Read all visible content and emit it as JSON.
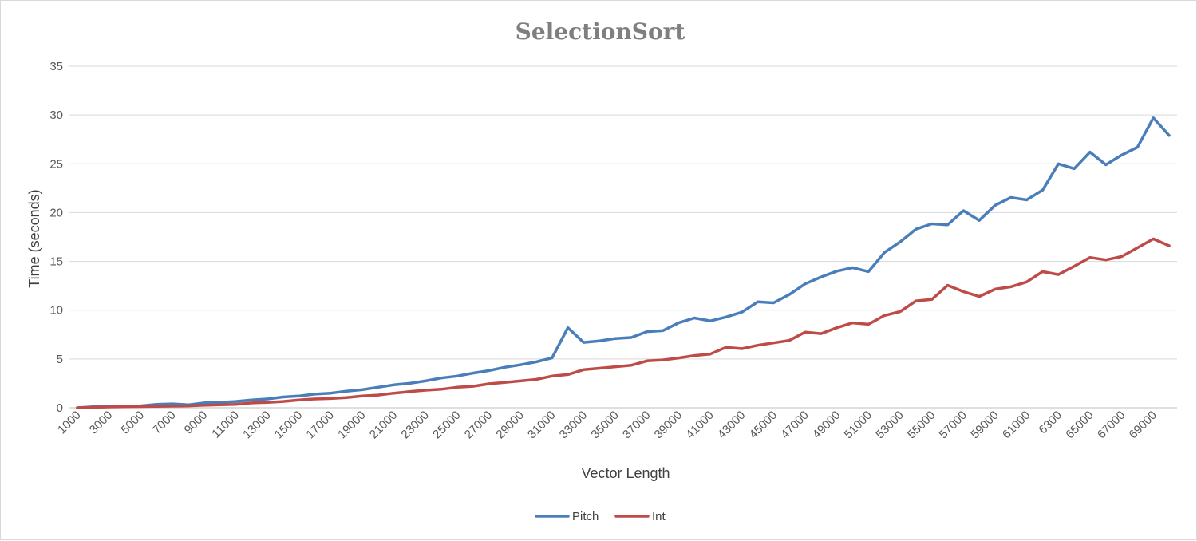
{
  "chart_data": {
    "type": "line",
    "title": "SelectionSort",
    "xlabel": "Vector Length",
    "ylabel": "Time (seconds)",
    "ylim": [
      0,
      35
    ],
    "yticks": [
      0,
      5,
      10,
      15,
      20,
      25,
      30,
      35
    ],
    "grid": true,
    "legend_position": "bottom-center",
    "categories": [
      "1000",
      "2000",
      "3000",
      "4000",
      "5000",
      "6000",
      "7000",
      "8000",
      "9000",
      "10000",
      "11000",
      "12000",
      "13000",
      "14000",
      "15000",
      "16000",
      "17000",
      "18000",
      "19000",
      "20000",
      "21000",
      "22000",
      "23000",
      "24000",
      "25000",
      "26000",
      "27000",
      "28000",
      "29000",
      "30000",
      "31000",
      "32000",
      "33000",
      "34000",
      "35000",
      "36000",
      "37000",
      "38000",
      "39000",
      "40000",
      "41000",
      "42000",
      "43000",
      "44000",
      "45000",
      "46000",
      "47000",
      "48000",
      "49000",
      "50000",
      "51000",
      "52000",
      "53000",
      "54000",
      "55000",
      "56000",
      "57000",
      "58000",
      "59000",
      "60000",
      "61000",
      "62000",
      "6300",
      "64000",
      "65000",
      "66000",
      "67000",
      "68000",
      "69000",
      "70000"
    ],
    "visible_tick_labels": [
      "1000",
      "3000",
      "5000",
      "7000",
      "9000",
      "11000",
      "13000",
      "15000",
      "17000",
      "19000",
      "21000",
      "23000",
      "25000",
      "27000",
      "29000",
      "31000",
      "33000",
      "35000",
      "37000",
      "39000",
      "41000",
      "43000",
      "45000",
      "47000",
      "49000",
      "51000",
      "53000",
      "55000",
      "57000",
      "59000",
      "61000",
      "6300",
      "65000",
      "67000",
      "69000"
    ],
    "series": [
      {
        "name": "Pitch",
        "color": "#4a7ebb",
        "values": [
          0.0,
          0.1,
          0.1,
          0.15,
          0.2,
          0.35,
          0.4,
          0.3,
          0.5,
          0.55,
          0.65,
          0.8,
          0.9,
          1.1,
          1.2,
          1.4,
          1.5,
          1.7,
          1.85,
          2.1,
          2.35,
          2.5,
          2.75,
          3.05,
          3.25,
          3.55,
          3.8,
          4.15,
          4.4,
          4.7,
          5.1,
          8.2,
          6.7,
          6.85,
          7.1,
          7.2,
          7.8,
          7.9,
          8.7,
          9.2,
          8.9,
          9.3,
          9.8,
          10.85,
          10.75,
          11.6,
          12.7,
          13.4,
          14.0,
          14.35,
          13.95,
          15.9,
          17.0,
          18.3,
          18.85,
          18.75,
          20.2,
          19.2,
          20.75,
          21.55,
          21.3,
          22.3,
          25.0,
          24.5,
          26.2,
          24.9,
          25.9,
          26.7,
          29.7,
          27.9
        ]
      },
      {
        "name": "Int",
        "color": "#be4b48",
        "values": [
          0.0,
          0.05,
          0.08,
          0.1,
          0.12,
          0.15,
          0.17,
          0.2,
          0.25,
          0.3,
          0.35,
          0.5,
          0.55,
          0.65,
          0.8,
          0.9,
          0.95,
          1.05,
          1.2,
          1.3,
          1.5,
          1.65,
          1.8,
          1.9,
          2.1,
          2.2,
          2.45,
          2.6,
          2.75,
          2.9,
          3.25,
          3.4,
          3.9,
          4.05,
          4.2,
          4.35,
          4.8,
          4.9,
          5.1,
          5.35,
          5.5,
          6.2,
          6.05,
          6.4,
          6.65,
          6.9,
          7.75,
          7.6,
          8.2,
          8.7,
          8.55,
          9.45,
          9.85,
          10.95,
          11.1,
          12.55,
          11.9,
          11.4,
          12.15,
          12.4,
          12.9,
          13.95,
          13.65,
          14.5,
          15.4,
          15.15,
          15.5,
          16.4,
          17.3,
          16.6
        ]
      }
    ]
  }
}
